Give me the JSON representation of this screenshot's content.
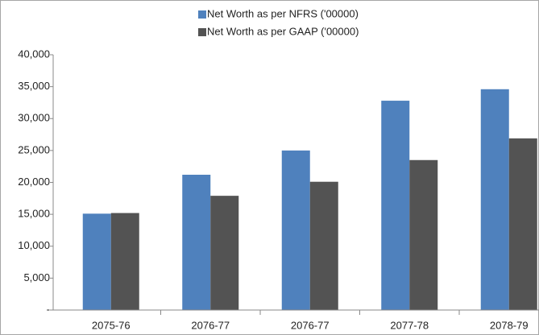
{
  "chart_data": {
    "type": "bar",
    "categories": [
      "2075-76",
      "2076-77",
      "2076-77",
      "2077-78",
      "2078-79"
    ],
    "series": [
      {
        "name": "Net Worth as per NFRS ('00000)",
        "color": "#4f81bd",
        "values": [
          15100,
          21200,
          25000,
          32800,
          34600
        ]
      },
      {
        "name": "Net Worth as per GAAP ('00000)",
        "color": "#535353",
        "values": [
          15200,
          17900,
          20100,
          23500,
          26900
        ]
      }
    ],
    "ylim": [
      0,
      40000
    ],
    "yticks": [
      {
        "value": 0,
        "label": "-"
      },
      {
        "value": 5000,
        "label": "5,000"
      },
      {
        "value": 10000,
        "label": "10,000"
      },
      {
        "value": 15000,
        "label": "15,000"
      },
      {
        "value": 20000,
        "label": "20,000"
      },
      {
        "value": 25000,
        "label": "25,000"
      },
      {
        "value": 30000,
        "label": "30,000"
      },
      {
        "value": 35000,
        "label": "35,000"
      },
      {
        "value": 40000,
        "label": "40,000"
      }
    ],
    "grid": false,
    "legend": "top"
  }
}
